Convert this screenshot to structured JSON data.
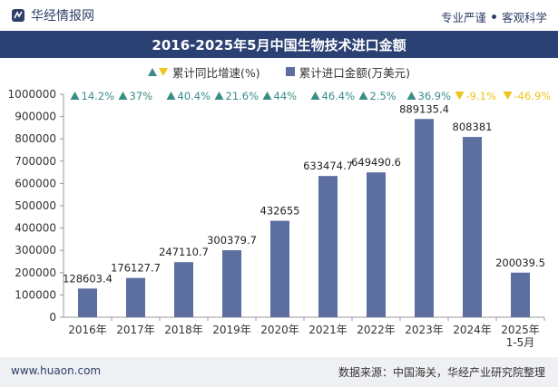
{
  "header": {
    "brand": "华经情报网",
    "tagline_left": "专业严谨",
    "tagline_right": "客观科学"
  },
  "footer": {
    "website": "www.huaon.com",
    "source": "数据来源：中国海关，华经产业研究院整理"
  },
  "colors": {
    "title_bg": "#2b4173",
    "bar": "#5d6ea1",
    "up": "#3a8c86",
    "down": "#f0c419"
  },
  "chart_data": {
    "type": "bar",
    "title": "2016-2025年5月中国生物技术进口金额",
    "categories": [
      "2016年",
      "2017年",
      "2018年",
      "2019年",
      "2020年",
      "2021年",
      "2022年",
      "2023年",
      "2024年",
      "2025年\n1-5月"
    ],
    "series": [
      {
        "name": "累计进口金额(万美元)",
        "values": [
          128603.4,
          176127.7,
          247110.7,
          300379.7,
          432655,
          633474.7,
          649490.6,
          889135.4,
          808381,
          200039.5
        ],
        "labels": [
          "128603.4",
          "176127.7",
          "247110.7",
          "300379.7",
          "432655",
          "633474.7",
          "649490.6",
          "889135.4",
          "808381",
          "200039.5"
        ]
      },
      {
        "name": "累计同比增速(%)",
        "values": [
          14.2,
          37,
          40.4,
          21.6,
          44,
          46.4,
          2.5,
          36.9,
          -9.1,
          -46.9
        ],
        "labels": [
          "14.2%",
          "37%",
          "40.4%",
          "21.6%",
          "44%",
          "46.4%",
          "2.5%",
          "36.9%",
          "-9.1%",
          "-46.9%"
        ]
      }
    ],
    "ylim": [
      0,
      1000000
    ],
    "yticks": [
      0,
      100000,
      200000,
      300000,
      400000,
      500000,
      600000,
      700000,
      800000,
      900000,
      1000000
    ],
    "legend_position": "top-center",
    "grid": false
  }
}
